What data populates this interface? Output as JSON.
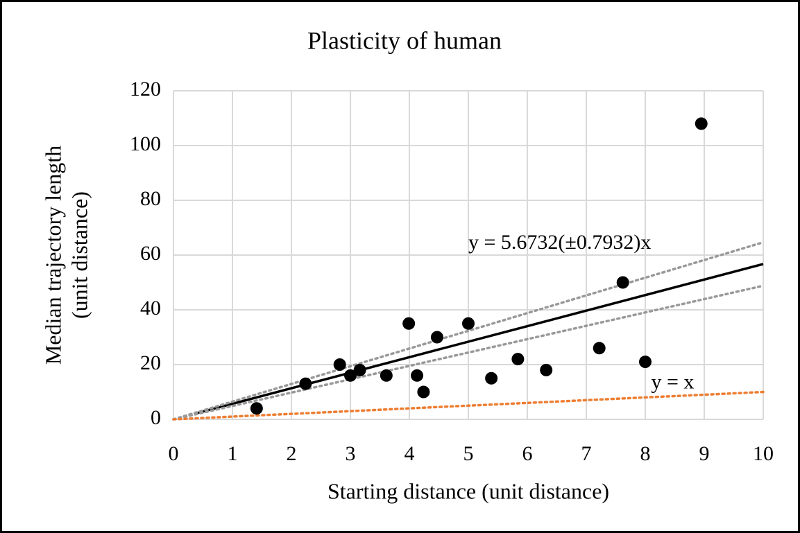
{
  "chart_data": {
    "type": "scatter",
    "title": "Plasticity  of human",
    "xlabel": "Starting distance (unit distance)",
    "ylabel": [
      "Median trajectory length",
      "(unit distance)"
    ],
    "xlim": [
      0,
      10
    ],
    "ylim": [
      0,
      120
    ],
    "xticks": [
      0,
      1,
      2,
      3,
      4,
      5,
      6,
      7,
      8,
      9,
      10
    ],
    "yticks": [
      0,
      20,
      40,
      60,
      80,
      100,
      120
    ],
    "grid": true,
    "series": [
      {
        "color": "#000000",
        "x": [
          1.41,
          2.24,
          2.82,
          3.0,
          3.16,
          3.61,
          3.99,
          4.13,
          4.24,
          4.47,
          5.0,
          5.39,
          5.84,
          6.32,
          7.22,
          7.62,
          8.0,
          8.95
        ],
        "values": [
          4,
          13,
          20,
          16,
          18,
          16,
          35,
          16,
          10,
          30,
          35,
          15,
          22,
          18,
          26,
          50,
          21,
          108
        ]
      }
    ],
    "lines": [
      {
        "color": "#000000",
        "dash": false,
        "x": [
          0.4,
          10
        ],
        "values": [
          2.27,
          56.73
        ]
      },
      {
        "color": "#999999",
        "dash": true,
        "x": [
          0,
          10
        ],
        "values": [
          0,
          64.66
        ]
      },
      {
        "color": "#999999",
        "dash": true,
        "x": [
          0,
          10
        ],
        "values": [
          0,
          48.8
        ]
      },
      {
        "color": "#ed7d31",
        "dash": true,
        "x": [
          0,
          10
        ],
        "values": [
          0,
          10
        ]
      }
    ],
    "annotations": [
      {
        "text": "y = 5.6732(±0.7932)x",
        "x": 5.0,
        "y": 64
      },
      {
        "text": "y = x",
        "x": 8.1,
        "y": 13
      }
    ]
  }
}
